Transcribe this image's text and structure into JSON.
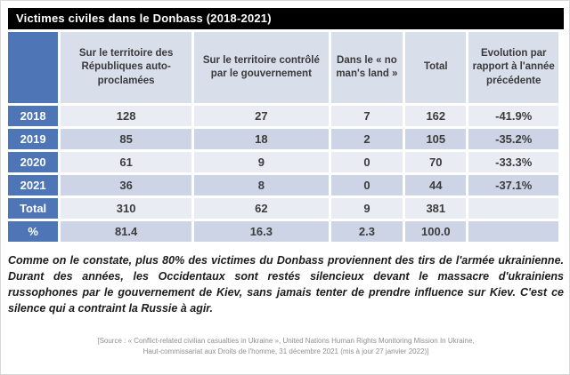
{
  "title": "Victimes civiles dans le Donbass (2018-2021)",
  "table": {
    "columns": [
      "",
      "Sur le territoire des Républiques auto-proclamées",
      "Sur le territoire contrôlé par le gouvernement",
      "Dans le « no man's land »",
      "Total",
      "Evolution par rapport à l'année précédente"
    ],
    "rows": [
      {
        "label": "2018",
        "values": [
          "128",
          "27",
          "7",
          "162",
          "-41.9%"
        ]
      },
      {
        "label": "2019",
        "values": [
          "85",
          "18",
          "2",
          "105",
          "-35.2%"
        ]
      },
      {
        "label": "2020",
        "values": [
          "61",
          "9",
          "0",
          "70",
          "-33.3%"
        ]
      },
      {
        "label": "2021",
        "values": [
          "36",
          "8",
          "0",
          "44",
          "-37.1%"
        ]
      },
      {
        "label": "Total",
        "values": [
          "310",
          "62",
          "9",
          "381",
          ""
        ]
      },
      {
        "label": "%",
        "values": [
          "81.4",
          "16.3",
          "2.3",
          "100.0",
          ""
        ]
      }
    ]
  },
  "commentary": "Comme on le constate, plus 80% des victimes du Donbass proviennent des tirs de l'armée ukrainienne. Durant des années, les Occidentaux sont restés silencieux devant le massacre d'ukrainiens russophones par le gouvernement de Kiev, sans jamais tenter de prendre influence sur Kiev.  C'est ce silence qui a contraint la Russie à agir.",
  "source": {
    "lines": [
      "[Source : « Conflict-related civilian casualties in Ukraine », United Nations Human Rights Monitoring Mission In Ukraine,",
      "Haut-commissariat aux Droits de l'homme, 31 décembre 2021 (mis à jour 27 janvier 2022)]"
    ]
  },
  "colors": {
    "title_bg": "#000000",
    "title_fg": "#ffffff",
    "accent_blue": "#4e75b5",
    "header_fill": "#d9deeb",
    "band_light": "#eaecf4",
    "band_dark": "#ccd4e5"
  }
}
